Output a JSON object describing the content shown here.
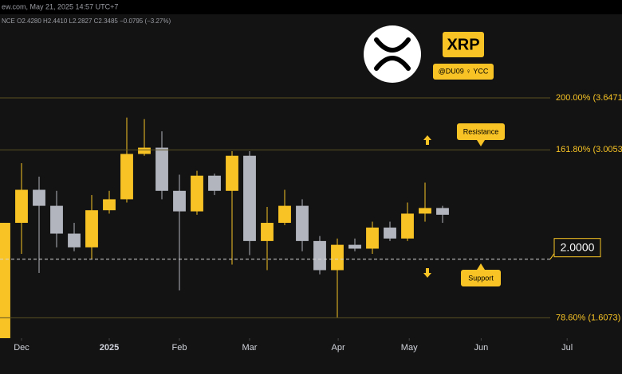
{
  "chart_data": {
    "type": "candlestick",
    "header_text": "ew.com, May 21, 2025 14:57 UTC+7",
    "ohlc_text": "NCE O2.4280 H2.4410 L2.2827 C2.3485 −0.0795 (−3.27%)",
    "badge": "XRP",
    "handle": "@DU09 ♀ YCC",
    "resistance_label": "Resistance",
    "support_label": "Support",
    "x": [
      0,
      1,
      2,
      3,
      4,
      5,
      6,
      7,
      8,
      9,
      10,
      11,
      12,
      13,
      14,
      15,
      16,
      17,
      18,
      19,
      20,
      21,
      22,
      23,
      24,
      25
    ],
    "open": [
      1.42,
      2.29,
      2.59,
      2.44,
      2.2,
      2.09,
      2.4,
      2.5,
      2.96,
      3.03,
      2.58,
      2.39,
      2.73,
      2.58,
      2.94,
      2.14,
      2.29,
      2.44,
      2.14,
      1.92,
      2.11,
      2.08,
      2.25,
      2.16,
      2.37,
      2.42
    ],
    "high": [
      2.29,
      2.86,
      2.72,
      2.58,
      2.29,
      2.54,
      2.58,
      3.39,
      3.37,
      3.22,
      2.74,
      2.78,
      2.75,
      2.99,
      2.99,
      2.43,
      2.59,
      2.5,
      2.18,
      2.16,
      2.16,
      2.3,
      2.3,
      2.47,
      2.66,
      2.44
    ],
    "low": [
      1.42,
      2.04,
      1.9,
      2.09,
      2.06,
      2.0,
      2.37,
      2.47,
      2.94,
      2.5,
      1.78,
      2.36,
      2.54,
      1.96,
      2.03,
      1.92,
      2.27,
      2.06,
      1.89,
      1.61,
      2.06,
      2.04,
      2.14,
      2.14,
      2.3,
      2.29
    ],
    "close": [
      2.29,
      2.59,
      2.44,
      2.2,
      2.09,
      2.4,
      2.5,
      2.96,
      3.03,
      2.58,
      2.39,
      2.73,
      2.58,
      2.94,
      2.14,
      2.29,
      2.44,
      2.14,
      1.92,
      2.11,
      2.08,
      2.25,
      2.16,
      2.37,
      2.42,
      2.36
    ],
    "up_color": "#f7c325",
    "down_color": "#b2b5be",
    "log_scale": true,
    "ylim": [
      1.49,
      4.95
    ],
    "xlim": [
      -0.227,
      35.227
    ],
    "xticks": [
      {
        "value": 1,
        "label": "Dec"
      },
      {
        "value": 6,
        "label": "2025"
      },
      {
        "value": 10,
        "label": "Feb"
      },
      {
        "value": 14,
        "label": "Mar"
      },
      {
        "value": 19.05,
        "label": "Apr"
      },
      {
        "value": 23.1,
        "label": "May"
      },
      {
        "value": 27.2,
        "label": "Jun"
      },
      {
        "value": 32.1,
        "label": "Jul"
      }
    ],
    "levels": [
      {
        "value": 3.6471,
        "label": "200.00% (3.6471"
      },
      {
        "value": 3.0053,
        "label": "161.80% (3.0053"
      },
      {
        "value": 1.6073,
        "label": "78.60% (1.6073)"
      }
    ],
    "support": {
      "value": 2.0,
      "label": "2.0000"
    }
  }
}
